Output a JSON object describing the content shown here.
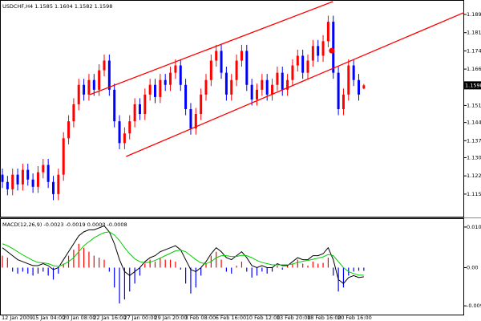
{
  "chart_data": [
    {
      "type": "candlestick",
      "title": "USDCHF,H4  1.1585 1.1604 1.1582 1.1598",
      "categories": [
        "12 Jan 2009",
        null,
        null,
        null,
        null,
        null,
        "15 Jan 04:00",
        null,
        null,
        null,
        null,
        null,
        "20 Jan 08:00",
        null,
        null,
        null,
        null,
        null,
        "22 Jan 16:00",
        null,
        null,
        null,
        null,
        null,
        "27 Jan 00:00",
        null,
        null,
        null,
        null,
        null,
        "29 Jan 20:00",
        null,
        null,
        null,
        null,
        null,
        "3 Feb 08:00",
        null,
        null,
        null,
        null,
        null,
        "6 Feb 16:00",
        null,
        null,
        null,
        null,
        null,
        "10 Feb 12:00",
        null,
        null,
        null,
        null,
        null,
        "13 Feb 20:00",
        null,
        null,
        null,
        null,
        null,
        "18 Feb 16:00",
        null,
        null,
        null,
        null,
        null,
        "20 Feb 16:00",
        null,
        null,
        null,
        null,
        null
      ],
      "open": [
        1.123,
        1.12,
        1.117,
        1.123,
        1.119,
        1.125,
        1.121,
        1.118,
        1.124,
        1.127,
        1.12,
        1.115,
        1.123,
        1.138,
        1.145,
        1.152,
        1.16,
        1.156,
        1.162,
        1.158,
        1.166,
        1.17,
        1.158,
        1.145,
        1.136,
        1.14,
        1.145,
        1.152,
        1.148,
        1.156,
        1.16,
        1.155,
        1.162,
        1.16,
        1.165,
        1.168,
        1.16,
        1.15,
        1.142,
        1.148,
        1.156,
        1.162,
        1.17,
        1.174,
        1.165,
        1.156,
        1.162,
        1.17,
        1.174,
        1.16,
        1.154,
        1.158,
        1.162,
        1.156,
        1.16,
        1.165,
        1.158,
        1.162,
        1.168,
        1.172,
        1.165,
        1.17,
        1.176,
        1.172,
        1.178,
        1.186,
        1.165,
        1.15,
        1.156,
        1.168,
        1.162,
        1.1585
      ],
      "high": [
        1.1255,
        1.1225,
        1.1255,
        1.1255,
        1.1275,
        1.1275,
        1.1235,
        1.1265,
        1.1295,
        1.1295,
        1.1225,
        1.1255,
        1.1405,
        1.1475,
        1.1545,
        1.1625,
        1.1625,
        1.1645,
        1.1645,
        1.1685,
        1.1725,
        1.1725,
        1.1605,
        1.1475,
        1.1425,
        1.1475,
        1.1545,
        1.1545,
        1.1585,
        1.1625,
        1.1625,
        1.1645,
        1.1645,
        1.1675,
        1.1705,
        1.1705,
        1.1625,
        1.1525,
        1.1505,
        1.1585,
        1.1645,
        1.1725,
        1.1765,
        1.1765,
        1.1675,
        1.1645,
        1.1725,
        1.1765,
        1.1765,
        1.1625,
        1.1605,
        1.1645,
        1.1645,
        1.1625,
        1.1675,
        1.1675,
        1.1645,
        1.1705,
        1.1745,
        1.1745,
        1.1725,
        1.1785,
        1.1785,
        1.1805,
        1.1885,
        1.1885,
        1.1675,
        1.1585,
        1.1705,
        1.1705,
        1.1645,
        1.1604
      ],
      "low": [
        1.1175,
        1.1145,
        1.1145,
        1.1165,
        1.1165,
        1.1185,
        1.1155,
        1.1155,
        1.1215,
        1.1175,
        1.1125,
        1.1125,
        1.1205,
        1.1355,
        1.1425,
        1.1495,
        1.1535,
        1.1535,
        1.1555,
        1.1555,
        1.1635,
        1.1555,
        1.1425,
        1.1335,
        1.1335,
        1.1375,
        1.1425,
        1.1455,
        1.1455,
        1.1535,
        1.1525,
        1.1525,
        1.1575,
        1.1575,
        1.1625,
        1.1575,
        1.1475,
        1.1395,
        1.1395,
        1.1455,
        1.1535,
        1.1595,
        1.1675,
        1.1625,
        1.1535,
        1.1535,
        1.1595,
        1.1675,
        1.1575,
        1.1515,
        1.1515,
        1.1555,
        1.1535,
        1.1535,
        1.1575,
        1.1555,
        1.1555,
        1.1595,
        1.1655,
        1.1625,
        1.1625,
        1.1675,
        1.1695,
        1.1695,
        1.1755,
        1.1625,
        1.1475,
        1.1475,
        1.1535,
        1.1595,
        1.1535,
        1.1582
      ],
      "close": [
        1.12,
        1.117,
        1.123,
        1.119,
        1.125,
        1.121,
        1.118,
        1.124,
        1.127,
        1.12,
        1.115,
        1.123,
        1.138,
        1.145,
        1.152,
        1.16,
        1.156,
        1.162,
        1.158,
        1.166,
        1.17,
        1.158,
        1.145,
        1.136,
        1.14,
        1.145,
        1.152,
        1.148,
        1.156,
        1.16,
        1.155,
        1.162,
        1.16,
        1.165,
        1.168,
        1.16,
        1.15,
        1.142,
        1.148,
        1.156,
        1.162,
        1.17,
        1.174,
        1.165,
        1.156,
        1.162,
        1.17,
        1.174,
        1.16,
        1.154,
        1.158,
        1.162,
        1.156,
        1.16,
        1.165,
        1.158,
        1.162,
        1.168,
        1.172,
        1.165,
        1.17,
        1.176,
        1.172,
        1.178,
        1.186,
        1.165,
        1.15,
        1.156,
        1.168,
        1.162,
        1.156,
        1.1598
      ],
      "color_up": "#ff0000",
      "color_down": "#0000ff",
      "ylim": [
        1.1057,
        1.1943
      ],
      "yticks": [
        1.189,
        {
          "value": 1.1815,
          "label": "1.1815"
        },
        {
          "value": 1.174,
          "label": "1.1740"
        },
        1.1665,
        1.1515,
        1.1445,
        {
          "value": 1.137,
          "label": "1.1370"
        },
        {
          "value": 1.13,
          "label": "1.1300"
        },
        1.1225,
        {
          "value": 1.115,
          "label": "1.1150"
        }
      ],
      "current_price": 1.1598,
      "trendlines": [
        {
          "x": [
            17.2,
            64.9
          ],
          "y": [
            1.156,
            1.1943
          ],
          "color": "#ff0000"
        },
        {
          "x": [
            24.3,
            90.9
          ],
          "y": [
            1.1305,
            1.19
          ],
          "color": "#ff0000"
        }
      ],
      "marker": {
        "x": 64.7,
        "y": 1.1741,
        "color": "#ff0000"
      }
    },
    {
      "type": "macd",
      "title": "MACD(12,26,9) -0.0023 -0.0019 0.0000 -0.0008",
      "ylim": [
        -0.0118,
        0.0122
      ],
      "yticks": [
        0.0102,
        {
          "value": 0,
          "label": "0.00"
        },
        -0.0096
      ],
      "histogram": {
        "color_positive": "#ff0000",
        "color_negative": "#0000ff",
        "values": [
          0.003,
          0.0025,
          -0.001,
          -0.0015,
          -0.001,
          -0.0015,
          -0.002,
          -0.0015,
          -0.001,
          -0.002,
          -0.003,
          -0.0015,
          0.001,
          0.003,
          0.0045,
          0.006,
          0.005,
          0.004,
          0.003,
          0.0025,
          0.002,
          -0.001,
          -0.005,
          -0.009,
          -0.008,
          -0.006,
          -0.004,
          -0.002,
          0.001,
          0.002,
          0.0015,
          0.0025,
          0.002,
          0.002,
          0.0015,
          -0.0005,
          -0.004,
          -0.0065,
          -0.005,
          -0.002,
          0.001,
          0.003,
          0.004,
          0.002,
          -0.001,
          -0.0015,
          0.0005,
          0.0015,
          -0.001,
          -0.0025,
          -0.002,
          -0.001,
          -0.0015,
          -0.001,
          0.0005,
          -0.0005,
          0.0005,
          0.001,
          0.002,
          0.001,
          0.0005,
          0.0015,
          0.001,
          0.0012,
          0.0025,
          -0.002,
          -0.006,
          -0.005,
          -0.002,
          -0.001,
          -0.0008,
          -0.0008
        ]
      },
      "lines": [
        {
          "color": "#000000",
          "values": [
            0.005,
            0.004,
            0.003,
            0.002,
            0.0015,
            0.001,
            0.0005,
            0.0005,
            0.001,
            0.0005,
            -0.0005,
            0.0,
            0.002,
            0.004,
            0.006,
            0.008,
            0.009,
            0.0095,
            0.0095,
            0.01,
            0.0105,
            0.009,
            0.006,
            0.002,
            -0.001,
            -0.002,
            -0.001,
            0.0,
            0.0015,
            0.0025,
            0.003,
            0.004,
            0.0045,
            0.005,
            0.0055,
            0.0045,
            0.002,
            -0.0005,
            -0.001,
            0.0,
            0.0015,
            0.0035,
            0.005,
            0.004,
            0.0025,
            0.002,
            0.003,
            0.004,
            0.0025,
            0.0005,
            0.0,
            0.0005,
            0.0,
            0.0,
            0.001,
            0.0005,
            0.0005,
            0.0015,
            0.0025,
            0.002,
            0.002,
            0.003,
            0.003,
            0.0035,
            0.005,
            0.002,
            -0.003,
            -0.004,
            -0.0025,
            -0.002,
            -0.0025,
            -0.0023
          ]
        },
        {
          "color": "#00cc00",
          "values": [
            0.006,
            0.0055,
            0.0048,
            0.004,
            0.0032,
            0.0025,
            0.0018,
            0.0013,
            0.0012,
            0.001,
            0.0005,
            0.0003,
            0.0008,
            0.0015,
            0.0025,
            0.004,
            0.0055,
            0.0065,
            0.0075,
            0.0082,
            0.0088,
            0.009,
            0.0082,
            0.0068,
            0.005,
            0.0035,
            0.0022,
            0.0015,
            0.0012,
            0.0014,
            0.0018,
            0.0024,
            0.003,
            0.0036,
            0.0042,
            0.0044,
            0.004,
            0.003,
            0.002,
            0.0012,
            0.001,
            0.0015,
            0.0025,
            0.003,
            0.003,
            0.0028,
            0.0028,
            0.0031,
            0.003,
            0.0025,
            0.0018,
            0.0013,
            0.001,
            0.0007,
            0.0007,
            0.0007,
            0.0007,
            0.0009,
            0.0013,
            0.0016,
            0.0018,
            0.0021,
            0.0024,
            0.0027,
            0.0033,
            0.003,
            0.0015,
            0.0,
            -0.001,
            -0.0015,
            -0.0019,
            -0.0019
          ]
        }
      ]
    }
  ]
}
